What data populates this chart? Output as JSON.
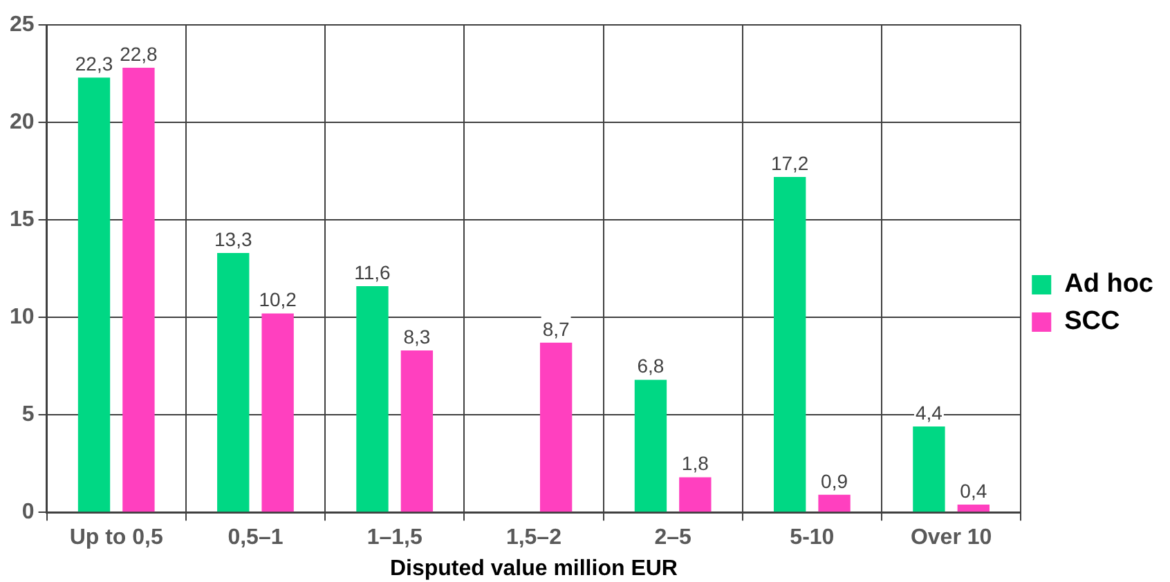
{
  "chart_data": {
    "type": "bar",
    "xlabel": "Disputed value million EUR",
    "categories": [
      "Up to 0,5",
      "0,5–1",
      "1–1,5",
      "1,5–2",
      "2–5",
      "5-10",
      "Over 10"
    ],
    "series": [
      {
        "name": "Ad hoc",
        "color": "#00d884",
        "values": [
          22.3,
          13.3,
          11.6,
          null,
          6.8,
          17.2,
          4.4
        ],
        "value_labels": [
          "22,3",
          "13,3",
          "11,6",
          null,
          "6,8",
          "17,2",
          "4,4"
        ]
      },
      {
        "name": "SCC",
        "color": "#ff40bf",
        "values": [
          22.8,
          10.2,
          8.3,
          8.7,
          1.8,
          0.9,
          0.4
        ],
        "value_labels": [
          "22,8",
          "10,2",
          "8,3",
          "8,7",
          "1,8",
          "0,9",
          "0,4"
        ]
      }
    ],
    "ylim": [
      0,
      25
    ],
    "yticks": [
      0,
      5,
      10,
      15,
      20,
      25
    ],
    "grid": true,
    "legend": "right"
  }
}
